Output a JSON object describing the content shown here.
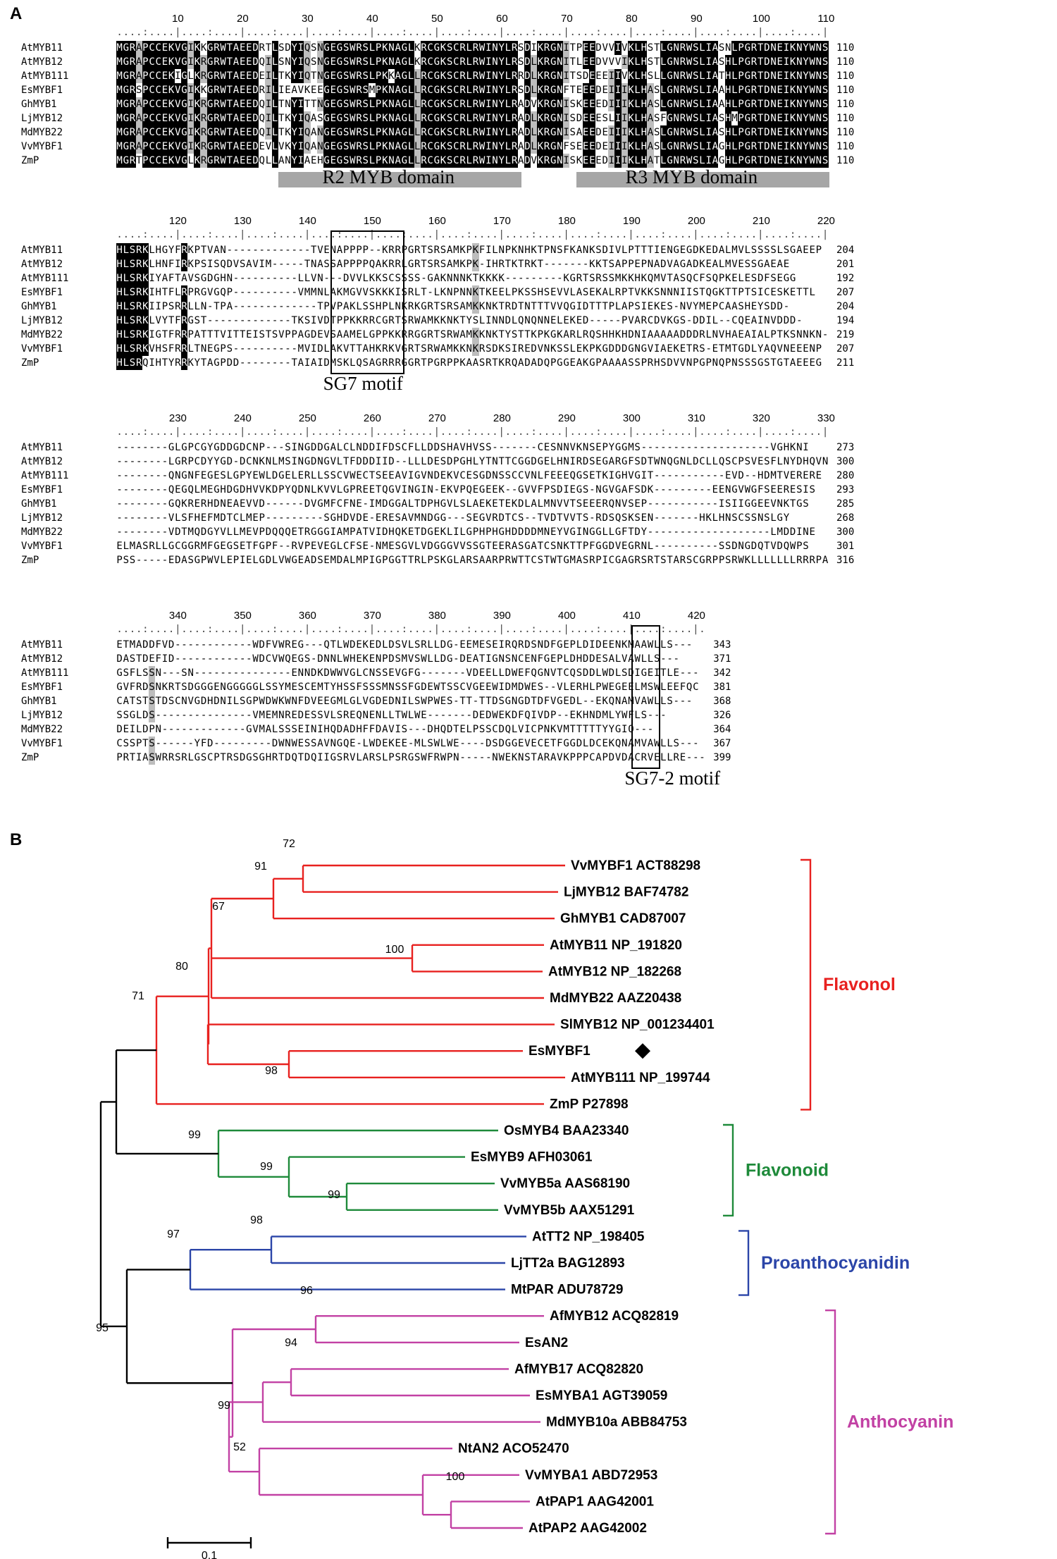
{
  "panel_a": {
    "letter": "A",
    "blocks": [
      {
        "ruler": [
          "10",
          "20",
          "30",
          "40",
          "50",
          "60",
          "70",
          "80",
          "90",
          "100",
          "110"
        ],
        "rows": [
          {
            "name": "AtMYB11",
            "seq": "MGRAPCCEKVGIKKGRWTAEEDRTLSDYIQSNGEGSWRSLPKNAGLKRCGKSCRLRWINYLRSDIKRGNITPEEDVVIVKLHSTLGNRWSLIASNLPGRTDNEIKNYWNS",
            "end": "110"
          },
          {
            "name": "AtMYB12",
            "seq": "MGRAPCCEKVGIKRGRWTAEEDQILSNYIQSNGEGSWRSLPKNAGLKRCGKSCRLRWINYLRSDLKRGNITLEEDVVVIKLHSTLGNRWSLIASHLPGRTDNEIKNYWNS",
            "end": "110"
          },
          {
            "name": "AtMYB111",
            "seq": "MGRAPCCEKIGLKRGRWTAEEDEILTKYIQTNGEGSWRSLPKKAGLLRCGKSCRLRWINYLRRDLKRGNITSDEEEIIVKLHSLLGNRWSLIATHLPGRTDNEIKNYWNS",
            "end": "110"
          },
          {
            "name": "EsMYBF1",
            "seq": "MGRSPCCEKVGIKKGRWTAEEDRILIEAVKEEGEGSWRSMPKNAGLLRCGKSCRLRWINYLRSDLKRGNFTEEEDEIIIKLHASLGNRWSLIAAHLPGRTDNEIKNYWNS",
            "end": "110"
          },
          {
            "name": "GhMYB1",
            "seq": "MGRAPCCEKVGIKRGRWTAEEDQILTNYITTNGEGSWRSLPKNAGLLRCGKSCRLRWINYLRADVKRGNISKEEEDIIIKLHASLGNRWSLIAAHLPGRTDNEIKNYWNS",
            "end": "110"
          },
          {
            "name": "LjMYB12",
            "seq": "MGRAPCCEKVGIKRGRWTAEEDQILTKYIQASGEGSWRSLPKNAGLLRCGKSCRLRWINYLRADLKRGNISDEEESLIIKLHASFGNRWSLIASHMPGRTDNEIKNYWNS",
            "end": "110"
          },
          {
            "name": "MdMYB22",
            "seq": "MGRAPCCEKVGIKRGRWTAEEDQILTKYIQANGEGSWRSLPKNAGLLRCGKSCRLRWINYLRADLKRGNISAEEDEIIIKLHASLGNRWSLIASHLPGRTDNEIKNYWNS",
            "end": "110"
          },
          {
            "name": "VvMYBF1",
            "seq": "MGRAPCCEKVGIKRGRWTAEEDEVLVKYIQANGEGSWRSLPKNAGLLRCGKSCRLRWINYLRADLKRGNFSEEEDEIIIKLHASLGNRWSLIAGHLPGRTDNEIKNYWNS",
            "end": "110"
          },
          {
            "name": "ZmP",
            "seq": "MGRTPCCEKVGLKRGRWTAEEDQLLANYIAEHGEGSWRSLPKNAGLLRCGKSCRLRWINYLRADVKRGNISKEEEDIIIKLHATLGNRWSLIAGHLPGRTDNEIKNYWNS",
            "end": "110"
          }
        ],
        "domains": [
          {
            "label": "R2 MYB domain"
          },
          {
            "label": "R3 MYB domain"
          }
        ]
      },
      {
        "ruler": [
          "120",
          "130",
          "140",
          "150",
          "160",
          "170",
          "180",
          "190",
          "200",
          "210",
          "220"
        ],
        "rows": [
          {
            "name": "AtMYB11",
            "seq": "HLSRKLHGYFRKPTVAN-------------TVENAPPPP--KRRPGRTSRSAMKPKFILNPKNHKTPNSFKANKSDIVLPTTTIENGEGDKEDALMVLSSSSLSGAEEP",
            "end": "204"
          },
          {
            "name": "AtMYB12",
            "seq": "HLSRKLHNFIRKPSISQDVSAVIM-----TNASSAPPPPQAKRRLGRTSRSAMKPK-IHRTKTRKT-------KKTSAPPEPNADVAGADKEALMVESSGAEAE",
            "end": "201"
          },
          {
            "name": "AtMYB111",
            "seq": "HLSRKIYAFTAVSGDGHN----------LLVN---DVVLKKSCSSSS-GAKNNNKTKKKK---------KGRTSRSSMKKHKQMVTASQCFSQPKELESDFSEGG",
            "end": "192"
          },
          {
            "name": "EsMYBF1",
            "seq": "HLSRKIHTFLRPRGVGQP----------VMMNLAKMGVVSKKKISRLT-LKNPNNKTKEELPKSSHSEVVLASEKALRPTVKKSNNNIISTQGKTTPTSICESKETTL",
            "end": "207"
          },
          {
            "name": "GhMYB1",
            "seq": "HLSRKIIPSRRLLN-TPA-------------TPVPAKLSSHPLNKRKGRTSRSAMKKNKTRDTNTTTVVQGIDTTTPLAPSIEKES-NVYMEPCAASHEYSDD-",
            "end": "204"
          },
          {
            "name": "LjMYB12",
            "seq": "HLSRKLVYTFRGST-------------TKSIVDTPPKKRRCGRTSRWAMKKNKTYSLINNDLQNQNNELEKED-----PVARCDVKGS-DDIL--CQEAINVDDD-",
            "end": "194"
          },
          {
            "name": "MdMYB22",
            "seq": "HLSRKIGTFRRPATTTVITTEISTSVPPAGDEVSAAMELGPPKKRRGGRTSRWAMKKNKTYSTTKPKGKARLRQSHHKHDNIAAAAADDDRLNVHAEAIALPTKSNNKN-",
            "end": "219"
          },
          {
            "name": "VvMYBF1",
            "seq": "HLSRKVHSFRRLTNEGPS----------MVIDLAKVTTAHKRKVGRTSRWAMKKNKRSDKSIREDVNKSSLEKPKGDDDGNGVIAEKETRS-ETMTGDLYAQVNEEENP",
            "end": "207"
          },
          {
            "name": "ZmP",
            "seq": "HLSRQIHTYRRKYTAGPDD--------TAIAIDMSKLQSAGRRRGGRTPGRPPKAASRTKRQADADQPGGEAKGPAAAASSPRHSDVVNPGPNQPNSSSGSTGTAEEEG",
            "end": "211"
          }
        ],
        "motif": "SG7 motif"
      },
      {
        "ruler": [
          "230",
          "240",
          "250",
          "260",
          "270",
          "280",
          "290",
          "300",
          "310",
          "320",
          "330"
        ],
        "rows": [
          {
            "name": "AtMYB11",
            "seq": "--------GLGPCGYGDDGDCNP---SINGDDGALCLNDDIFDSCFLLDDSHAVHVSS-------CESNNVKNSEPYGGMS--------------------VGHKNI",
            "end": "273"
          },
          {
            "name": "AtMYB12",
            "seq": "--------LGRPCDYYGD-DCNKNLMSINGDNGVLTFDDDIID--LLLDESDPGHLYTNTTCGGDGELHNIRDSEGARGFSDTWNQGNLDCLLQSCPSVESFLNYDHQVN",
            "end": "300"
          },
          {
            "name": "AtMYB111",
            "seq": "--------QNGNFEGESLGPYEWLDGELERLLSSCVWECTSEEAVIGVNDEKVCESGDNSSCCVNLFEEEQGSETKIGHVGIT-----------EVD--HDMTVERERE",
            "end": "280"
          },
          {
            "name": "EsMYBF1",
            "seq": "--------QEGQLMEGHDGDHVVKDPYQDNLKVVLGPREETQGVINGIN-EKVPQEGEEK--GVVFPSDIEGS-NGVGAFSDK---------EENGVWGFSEERESIS",
            "end": "293"
          },
          {
            "name": "GhMYB1",
            "seq": "--------GQKRERHDNEAEVVD------DVGMFCFNE-IMDGGALTDPHGVLSLAEKETEKDLALMNVVTSEEERQNVSEP-----------ISIIGGEEVNKTGS",
            "end": "285"
          },
          {
            "name": "LjMYB12",
            "seq": "--------VLSFHEFMDTCLMEP---------SGHDVDE-ERESAVMNDGG---SEGVRDTCS--TVDTVVTS-RDSQSKSEN-------HKLHNSCSSNSLGY",
            "end": "268"
          },
          {
            "name": "MdMYB22",
            "seq": "--------VDTMQDGYVLLMEVPDQQQETRGGGIAMPATVIDHQKETDGEKLILGPHPHGHDDDDMNEYVGINGGLLGFTDY-------------------LMDDINE",
            "end": "300"
          },
          {
            "name": "VvMYBF1",
            "seq": "ELMASRLLGCGGRMFGEGSETFGPF--RVPEVEGLCFSE-NMESGVLVDGGGVVSSGTEERASGATCSNKTTPFGGDVEGRNL----------SSDNGDQTVDQWPS",
            "end": "301"
          },
          {
            "name": "ZmP",
            "seq": "PSS-----EDASGPWVLEPIELGDLVWGEADSEMDALMPIGPGGTTRLPSKGLARSAARPRWTTCSTWTGMASRPICGAGRSRTSTARSCGRPPSRWKLLLLLLLRRRPA",
            "end": "316"
          }
        ]
      },
      {
        "ruler": [
          "340",
          "350",
          "360",
          "370",
          "380",
          "390",
          "400",
          "410",
          "420"
        ],
        "rows": [
          {
            "name": "AtMYB11",
            "seq": "ETMADDFVD------------WDFVWREG---QTLWDEKEDLDSVLSRLLDG-EEMESEIRQRDSNDFGEPLDIDEENKMAAWLLS---",
            "end": "343"
          },
          {
            "name": "AtMYB12",
            "seq": "DASTDEFID------------WDCVWQEGS-DNNLWHEKENPDSMVSWLLDG-DEATIGNSNCENFGEPLDHDDESALVAWLLS---",
            "end": "371"
          },
          {
            "name": "AtMYB111",
            "seq": "GSFLSSN---SN---------------ENNDKDWWVGLCNSSEVGFG-------VDEELLDWEFQGNVTCQSDDLWDLSDIGEITLE---",
            "end": "342"
          },
          {
            "name": "EsMYBF1",
            "seq": "GVFRDSNKRTSDGGGENGGGGGLSSYMESCEMTYHSSFSSSMNSSFGDEWTSSCVGEEWIDMDWES--VLERHLPWEGEELMSWLEEFQC",
            "end": "381"
          },
          {
            "name": "GhMYB1",
            "seq": "CATSTSTDSCNVGDHDNILSGPWDWKWNFDVEEGMLGLVGDEDNILSWPWES-TT-TTDSGNGDTDFVGEDL--EKQNAMVAWLLS---",
            "end": "368"
          },
          {
            "name": "LjMYB12",
            "seq": "SSGLDS---------------VMEMNREDESSVLSREQNENLLTWLWE-------DEDWEKDFQIVDP--EKHNDMLYWFLS---",
            "end": "326"
          },
          {
            "name": "MdMYB22",
            "seq": "DEILDPN-------------GVMALSSSEINIHQDADHFFDAVIS---DHQDTELPSSCDQLVICPNKVMTTTTTYYGIQ---",
            "end": "364"
          },
          {
            "name": "VvMYBF1",
            "seq": "CSSPTS------YFD---------DWNWESSAVNGQE-LWDEKEE-MLSWLWE----DSDGGEVECETFGGDLDCEKQNAMVAWLLS---",
            "end": "367"
          },
          {
            "name": "ZmP",
            "seq": "PRTIASWRRSRLGSCPTRSDGSGHRTDQTDQIIGSRVLARSLPSRGSWFRWPN-----NWEKNSTARAVKPPPCAPDVDACRVELLRE---",
            "end": "399"
          }
        ],
        "motif": "SG7-2 motif"
      }
    ]
  },
  "panel_b": {
    "letter": "B",
    "taxa": [
      {
        "label": "VvMYBF1 ACT88298",
        "group": "flavonol"
      },
      {
        "label": "LjMYB12 BAF74782",
        "group": "flavonol"
      },
      {
        "label": "GhMYB1 CAD87007",
        "group": "flavonol"
      },
      {
        "label": "AtMYB11 NP_191820",
        "group": "flavonol"
      },
      {
        "label": "AtMYB12 NP_182268",
        "group": "flavonol"
      },
      {
        "label": "MdMYB22 AAZ20438",
        "group": "flavonol"
      },
      {
        "label": "SlMYB12 NP_001234401",
        "group": "flavonol"
      },
      {
        "label": "EsMYBF1",
        "group": "flavonol"
      },
      {
        "label": "AtMYB111 NP_199744",
        "group": "flavonol"
      },
      {
        "label": "ZmP P27898",
        "group": "flavonol"
      },
      {
        "label": "OsMYB4 BAA23340",
        "group": "flavonoid"
      },
      {
        "label": "EsMYB9 AFH03061",
        "group": "flavonoid"
      },
      {
        "label": "VvMYB5a AAS68190",
        "group": "flavonoid"
      },
      {
        "label": "VvMYB5b AAX51291",
        "group": "flavonoid"
      },
      {
        "label": "AtTT2 NP_198405",
        "group": "pa"
      },
      {
        "label": "LjTT2a BAG12893",
        "group": "pa"
      },
      {
        "label": "MtPAR ADU78729",
        "group": "pa"
      },
      {
        "label": "AfMYB12 ACQ82819",
        "group": "anthocyanin"
      },
      {
        "label": "EsAN2",
        "group": "anthocyanin"
      },
      {
        "label": "AfMYB17 ACQ82820",
        "group": "anthocyanin"
      },
      {
        "label": "EsMYBA1 AGT39059",
        "group": "anthocyanin"
      },
      {
        "label": "MdMYB10a ABB84753",
        "group": "anthocyanin"
      },
      {
        "label": "NtAN2 ACO52470",
        "group": "anthocyanin"
      },
      {
        "label": "VvMYBA1 ABD72953",
        "group": "anthocyanin"
      },
      {
        "label": "AtPAP1 AAG42001",
        "group": "anthocyanin"
      },
      {
        "label": "AtPAP2 AAG42002",
        "group": "anthocyanin"
      }
    ],
    "bootstrap": [
      "72",
      "91",
      "67",
      "100",
      "80",
      "71",
      "98",
      "99",
      "99",
      "99",
      "98",
      "97",
      "96",
      "94",
      "95",
      "99",
      "52",
      "100"
    ],
    "clades": [
      {
        "label": "Flavonol",
        "color": "#e8211f"
      },
      {
        "label": "Flavonoid",
        "color": "#1e8a3a"
      },
      {
        "label": "Proanthocyanidin",
        "color": "#2b45a8"
      },
      {
        "label": "Anthocyanin",
        "color": "#c241a4"
      }
    ],
    "scale_label": "0.1"
  }
}
